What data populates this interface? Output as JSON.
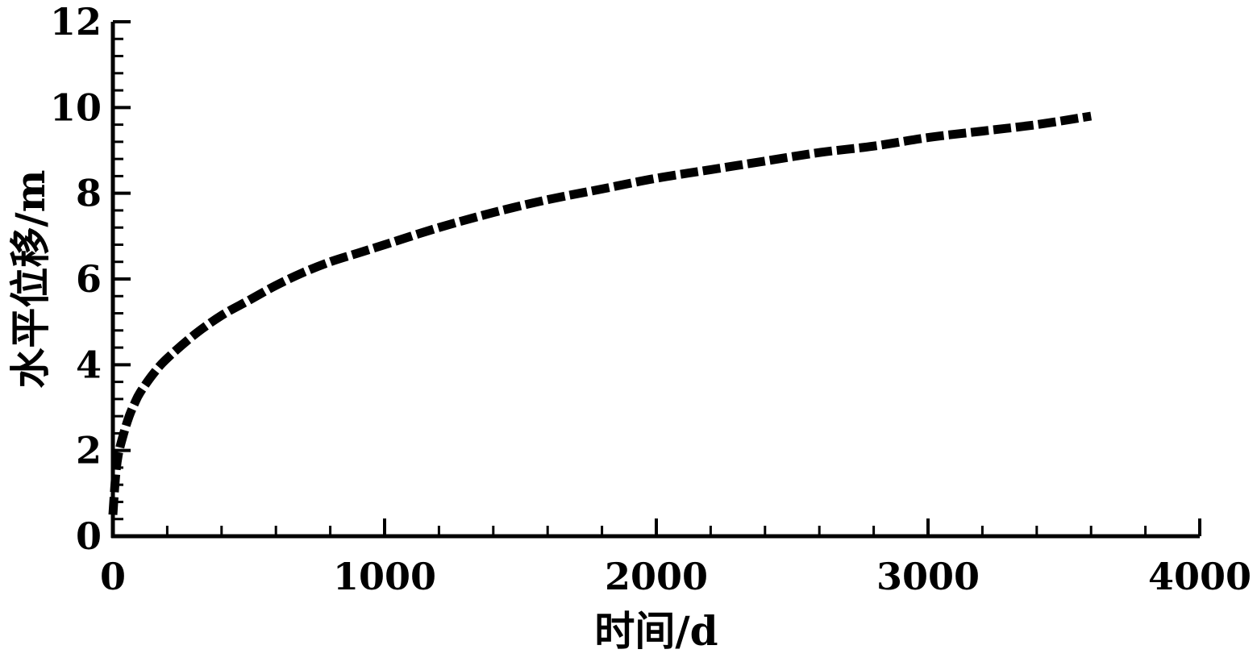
{
  "chart_data": {
    "type": "line",
    "title": "",
    "xlabel": "时间/d",
    "ylabel": "水平位移/m",
    "xlim": [
      0,
      4000
    ],
    "ylim": [
      0,
      12
    ],
    "x_ticks": [
      0,
      1000,
      2000,
      3000,
      4000
    ],
    "x_tick_labels": [
      "0",
      "1000",
      "2000",
      "3000",
      "4000"
    ],
    "y_ticks": [
      0,
      2,
      4,
      6,
      8,
      10,
      12
    ],
    "y_tick_labels": [
      "0",
      "2",
      "4",
      "6",
      "8",
      "10",
      "12"
    ],
    "x_minor_step": 200,
    "y_minor_step": 0.4,
    "grid": false,
    "legend": "none",
    "line_style": "dashed",
    "line_color": "#000000",
    "series": [
      {
        "x": [
          0,
          10,
          20,
          40,
          60,
          80,
          100,
          150,
          200,
          300,
          400,
          500,
          600,
          700,
          800,
          900,
          1000,
          1200,
          1400,
          1600,
          1800,
          2000,
          2200,
          2400,
          2600,
          2800,
          3000,
          3200,
          3400,
          3600
        ],
        "y": [
          0.5,
          1.4,
          1.9,
          2.4,
          2.8,
          3.1,
          3.35,
          3.8,
          4.15,
          4.7,
          5.15,
          5.5,
          5.85,
          6.15,
          6.4,
          6.6,
          6.8,
          7.2,
          7.55,
          7.85,
          8.1,
          8.35,
          8.55,
          8.75,
          8.95,
          9.1,
          9.3,
          9.45,
          9.6,
          9.8
        ]
      }
    ]
  }
}
